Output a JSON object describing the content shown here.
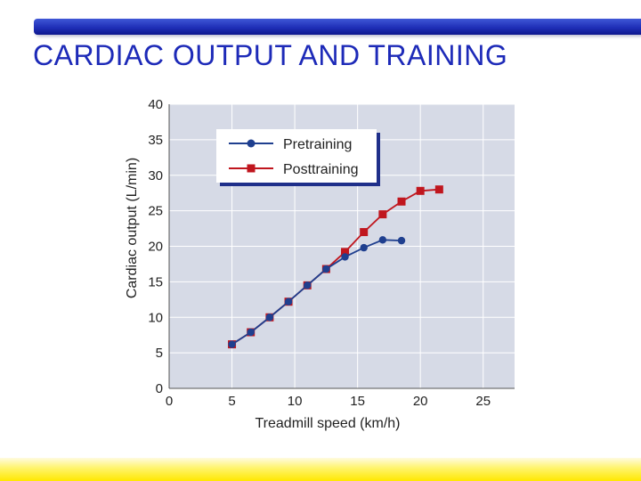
{
  "slide": {
    "title": "CARDIAC OUTPUT AND TRAINING"
  },
  "colors": {
    "title": "#1d2ab8",
    "top_bar": "#1f2fb8",
    "bottom_bar": "#ffe800",
    "plot_background": "#d6dae6",
    "pretraining": "#1f3f8f",
    "posttraining": "#c0161e"
  },
  "chart_data": {
    "type": "line",
    "title": "",
    "xlabel": "Treadmill speed (km/h)",
    "ylabel": "Cardiac output (L/min)",
    "xlim": [
      0,
      27.5
    ],
    "ylim": [
      0,
      40
    ],
    "xticks": [
      0,
      5,
      10,
      15,
      20,
      25
    ],
    "yticks": [
      0,
      5,
      10,
      15,
      20,
      25,
      30,
      35,
      40
    ],
    "grid": true,
    "legend_position": "top-left",
    "series": [
      {
        "name": "Pretraining",
        "marker": "circle",
        "color": "#1f3f8f",
        "x": [
          5,
          6.5,
          8,
          9.5,
          11,
          12.5,
          14,
          15.5,
          17,
          18.5
        ],
        "y": [
          6.2,
          7.9,
          10.0,
          12.2,
          14.5,
          16.8,
          18.5,
          19.8,
          20.9,
          20.8
        ]
      },
      {
        "name": "Posttraining",
        "marker": "square",
        "color": "#c0161e",
        "x": [
          5,
          6.5,
          8,
          9.5,
          11,
          12.5,
          14,
          15.5,
          17,
          18.5,
          20,
          21.5
        ],
        "y": [
          6.2,
          7.9,
          10.0,
          12.2,
          14.5,
          16.8,
          19.2,
          22.0,
          24.5,
          26.3,
          27.8,
          28.0
        ]
      }
    ]
  }
}
